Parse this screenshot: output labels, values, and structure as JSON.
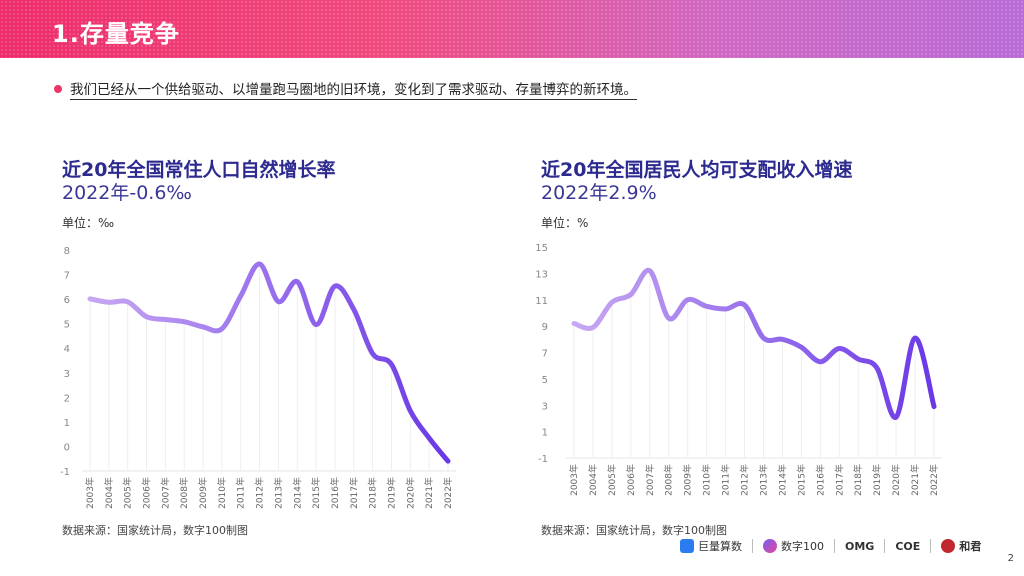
{
  "header": {
    "title": "1.存量竞争"
  },
  "intro": "我们已经从一个供给驱动、以增量跑马圈地的旧环境，变化到了需求驱动、存量博弈的新环境。",
  "chart_data": [
    {
      "type": "line",
      "title": "近20年全国常住人口自然增长率",
      "subtitle": "2022年-0.6‰",
      "unit": "单位：‰",
      "source": "数据来源：国家统计局，数字100制图",
      "categories": [
        "2003年",
        "2004年",
        "2005年",
        "2006年",
        "2007年",
        "2008年",
        "2009年",
        "2010年",
        "2011年",
        "2012年",
        "2013年",
        "2014年",
        "2015年",
        "2016年",
        "2017年",
        "2018年",
        "2019年",
        "2020年",
        "2021年",
        "2022年"
      ],
      "values": [
        6.01,
        5.87,
        5.89,
        5.28,
        5.17,
        5.08,
        4.87,
        4.79,
        6.13,
        7.43,
        5.9,
        6.71,
        4.96,
        6.53,
        5.58,
        3.78,
        3.34,
        1.45,
        0.34,
        -0.6
      ],
      "yticks": [
        8,
        7,
        6,
        5,
        4,
        3,
        2,
        1,
        0,
        -1
      ],
      "ylim": [
        -1,
        8
      ],
      "line_color_start": "#c7a8f2",
      "line_color_end": "#6a38e6"
    },
    {
      "type": "line",
      "title": "近20年全国居民人均可支配收入增速",
      "subtitle": "2022年2.9%",
      "unit": "单位：%",
      "source": "数据来源：国家统计局，数字100制图",
      "categories": [
        "2003年",
        "2004年",
        "2005年",
        "2006年",
        "2007年",
        "2008年",
        "2009年",
        "2010年",
        "2011年",
        "2012年",
        "2013年",
        "2014年",
        "2015年",
        "2016年",
        "2017年",
        "2018年",
        "2019年",
        "2020年",
        "2021年",
        "2022年"
      ],
      "values": [
        9.2,
        8.9,
        10.8,
        11.4,
        13.2,
        9.6,
        11.0,
        10.5,
        10.3,
        10.6,
        8.1,
        8.0,
        7.4,
        6.3,
        7.3,
        6.5,
        5.8,
        2.1,
        8.1,
        2.9
      ],
      "yticks": [
        15,
        13,
        11,
        9,
        7,
        5,
        3,
        1,
        -1
      ],
      "ylim": [
        -1,
        15
      ],
      "line_color_start": "#c7a8f2",
      "line_color_end": "#6a38e6"
    }
  ],
  "footer": {
    "logos": [
      "巨量算数",
      "数字100",
      "OMG",
      "COE",
      "和君"
    ],
    "page": "2"
  }
}
